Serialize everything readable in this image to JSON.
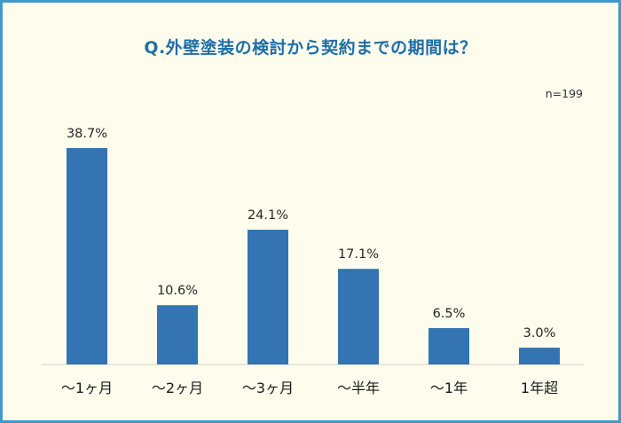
{
  "title": "Q.外壁塗装の検討から契約までの期間は？",
  "sample_size": "n=199",
  "colors": {
    "frame_border": "#3f9acb",
    "background": "#fefcec",
    "title": "#1f6ea8",
    "bar": "#3474b2"
  },
  "chart_data": {
    "type": "bar",
    "title": "Q.外壁塗装の検討から契約までの期間は？",
    "categories": [
      "～1ヶ月",
      "～2ヶ月",
      "～3ヶ月",
      "～半年",
      "～1年",
      "1年超"
    ],
    "values": [
      38.7,
      10.6,
      24.1,
      17.1,
      6.5,
      3.0
    ],
    "value_labels": [
      "38.7%",
      "10.6%",
      "24.1%",
      "17.1%",
      "6.5%",
      "3.0%"
    ],
    "unit": "%",
    "ylim": [
      0,
      40
    ],
    "grid": false,
    "legend": "none",
    "annotation": "n=199"
  }
}
